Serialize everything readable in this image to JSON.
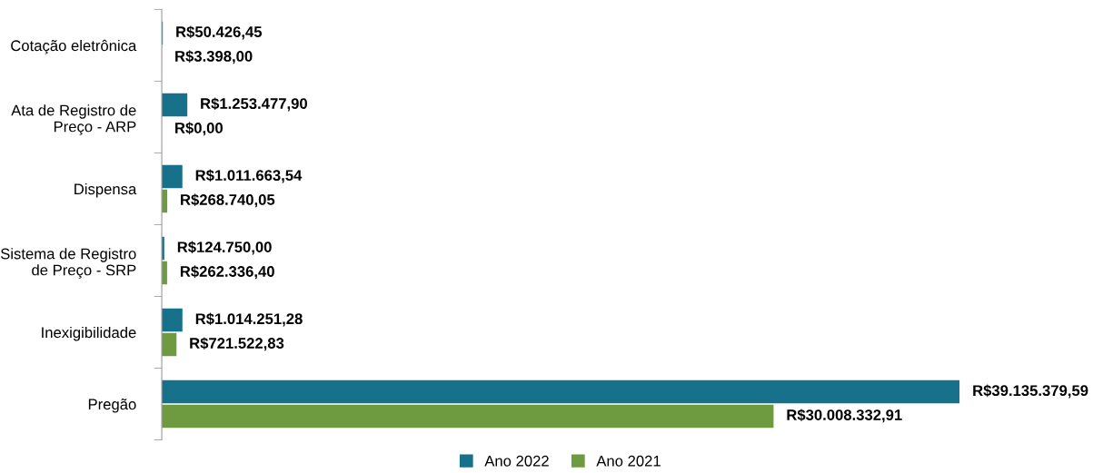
{
  "chart_data": {
    "type": "bar",
    "orientation": "horizontal",
    "categories": [
      "Cotação eletrônica",
      "Ata de Registro de\nPreço - ARP",
      "Dispensa",
      "Sistema de Registro\nde Preço - SRP",
      "Inexigibilidade",
      "Pregão"
    ],
    "series": [
      {
        "name": "Ano 2022",
        "color": "#17718a",
        "values": [
          50426.45,
          1253477.9,
          1011663.54,
          124750.0,
          1014251.28,
          39135379.59
        ],
        "value_labels": [
          "R$50.426,45",
          "R$1.253.477,90",
          "R$1.011.663,54",
          "R$124.750,00",
          "R$1.014.251,28",
          "R$39.135.379,59"
        ]
      },
      {
        "name": "Ano 2021",
        "color": "#6e9b3f",
        "values": [
          3398.0,
          0.0,
          268740.05,
          262336.4,
          721522.83,
          30008332.91
        ],
        "value_labels": [
          "R$3.398,00",
          "R$0,00",
          "R$268.740,05",
          "R$262.336,40",
          "R$721.522,83",
          "R$30.008.332,91"
        ]
      }
    ],
    "legend": "bottom",
    "grid": false
  }
}
